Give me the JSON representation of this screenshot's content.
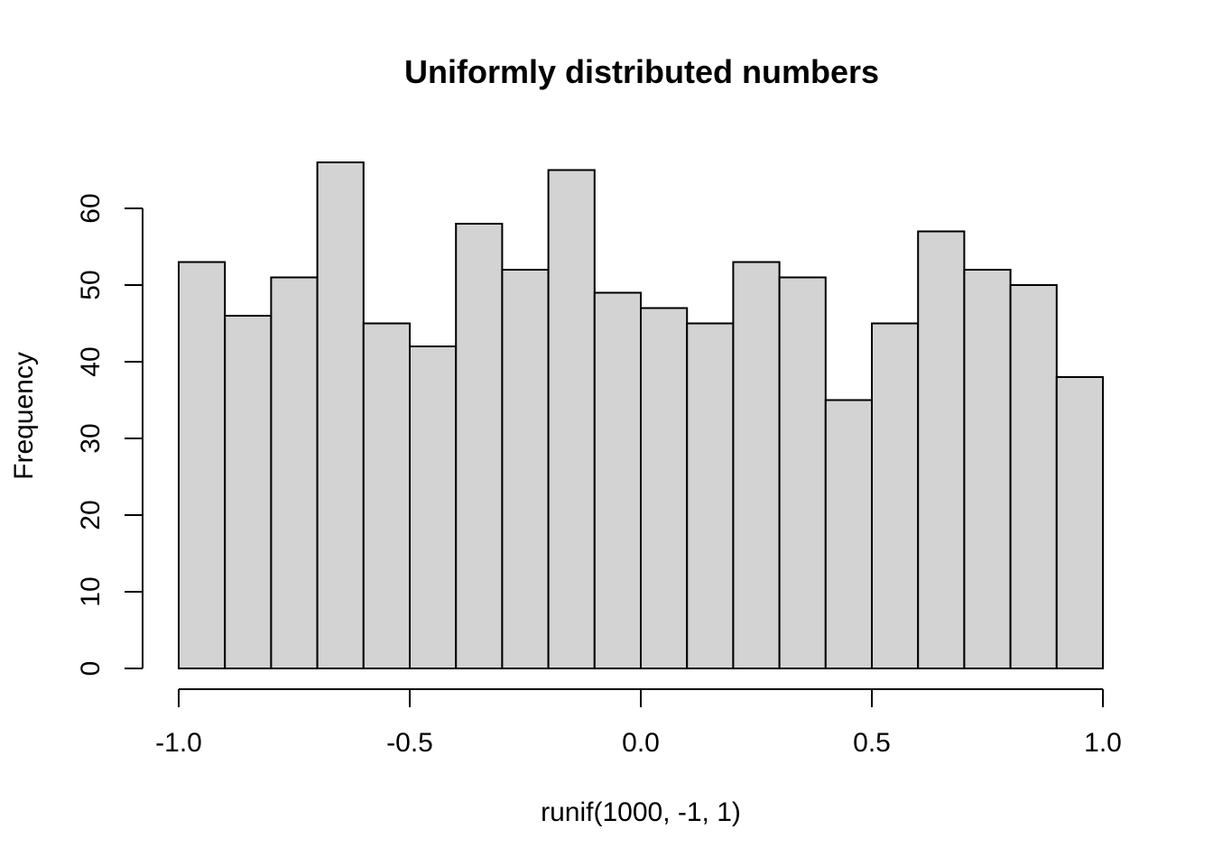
{
  "chart_data": {
    "type": "bar",
    "title": "Uniformly distributed numbers",
    "xlabel": "runif(1000, -1, 1)",
    "ylabel": "Frequency",
    "xlim": [
      -1.0,
      1.0
    ],
    "ylim": [
      0,
      66
    ],
    "x_ticks": [
      -1.0,
      -0.5,
      0.0,
      0.5,
      1.0
    ],
    "x_tick_labels": [
      "-1.0",
      "-0.5",
      "0.0",
      "0.5",
      "1.0"
    ],
    "y_ticks": [
      0,
      10,
      20,
      30,
      40,
      50,
      60
    ],
    "y_tick_labels": [
      "0",
      "10",
      "20",
      "30",
      "40",
      "50",
      "60"
    ],
    "bin_edges": [
      -1.0,
      -0.9,
      -0.8,
      -0.7,
      -0.6,
      -0.5,
      -0.4,
      -0.3,
      -0.2,
      -0.1,
      0.0,
      0.1,
      0.2,
      0.3,
      0.4,
      0.5,
      0.6,
      0.7,
      0.8,
      0.9,
      1.0
    ],
    "values": [
      53,
      46,
      51,
      66,
      45,
      42,
      58,
      52,
      65,
      49,
      47,
      45,
      53,
      51,
      35,
      45,
      57,
      52,
      50,
      38
    ],
    "bar_color": "#d3d3d3",
    "grid": false,
    "legend": "none"
  }
}
